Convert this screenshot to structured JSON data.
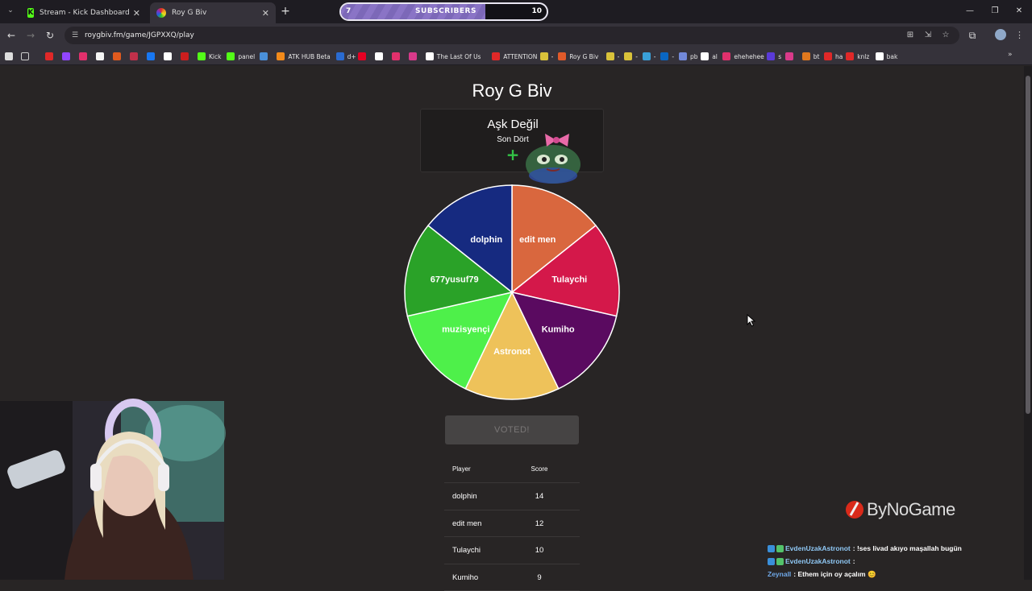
{
  "tabs": [
    {
      "title": "Stream - Kick Dashboard",
      "favicon": "kick-icon"
    },
    {
      "title": "Roy G Biv",
      "favicon": "roygbiv-icon"
    }
  ],
  "subscribers": {
    "current": "7",
    "label": "SUBSCRIBERS",
    "goal": "10",
    "progress": 0.7
  },
  "address_bar": {
    "url": "roygbiv.fm/game/JGPXXQ/play"
  },
  "bookmarks": [
    {
      "label": "",
      "color": "#e02828"
    },
    {
      "label": "",
      "color": "#9146ff"
    },
    {
      "label": "",
      "color": "#e1306c"
    },
    {
      "label": "",
      "color": "#f5f5f5"
    },
    {
      "label": "",
      "color": "#e05a1e"
    },
    {
      "label": "",
      "color": "#c0304a"
    },
    {
      "label": "",
      "color": "#1877f2"
    },
    {
      "label": "",
      "color": "#ffffff"
    },
    {
      "label": "",
      "color": "#cc1e1e"
    },
    {
      "label": "Kick",
      "color": "#53fc18"
    },
    {
      "label": "panel",
      "color": "#53fc18"
    },
    {
      "label": "",
      "color": "#4a90d9"
    },
    {
      "label": "ATK HUB Beta",
      "color": "#f28a1a"
    },
    {
      "label": "d+",
      "color": "#2a6bd1"
    },
    {
      "label": "",
      "color": "#e60023"
    },
    {
      "label": "",
      "color": "#ffffff"
    },
    {
      "label": "",
      "color": "#e1306c"
    },
    {
      "label": "",
      "color": "#d93a8a"
    },
    {
      "label": "The Last Of Us",
      "color": "#ffffff"
    },
    {
      "label": "ATTENTION",
      "color": "#e02828"
    },
    {
      "label": "-",
      "color": "#d9c23a"
    },
    {
      "label": "Roy G Biv",
      "color": "#e05a2a"
    },
    {
      "label": "-",
      "color": "#d9c23a"
    },
    {
      "label": "-",
      "color": "#d9c23a"
    },
    {
      "label": "-",
      "color": "#3aa0d9"
    },
    {
      "label": "-",
      "color": "#0a66c2"
    },
    {
      "label": "pb",
      "color": "#7289da"
    },
    {
      "label": "al",
      "color": "#ffffff"
    },
    {
      "label": "ehehehee",
      "color": "#e1306c"
    },
    {
      "label": "s",
      "color": "#5a3ad9"
    },
    {
      "label": "",
      "color": "#d93a8a"
    },
    {
      "label": "bt",
      "color": "#e0781e"
    },
    {
      "label": "ha",
      "color": "#e02828"
    },
    {
      "label": "knlz",
      "color": "#e02828"
    },
    {
      "label": "bak",
      "color": "#ffffff"
    }
  ],
  "game": {
    "title": "Roy G Biv",
    "song_title": "Aşk Değil",
    "song_artist": "Son Dört",
    "vote_button": "VOTED!"
  },
  "wheel": [
    {
      "label": "edit men",
      "color": "#d9673e"
    },
    {
      "label": "Tulaychi",
      "color": "#d4184a"
    },
    {
      "label": "Kumiho",
      "color": "#5a0a60"
    },
    {
      "label": "Astronot",
      "color": "#eec25a"
    },
    {
      "label": "muzisyençi",
      "color": "#4ef04a"
    },
    {
      "label": "677yusuf79",
      "color": "#2aa228"
    },
    {
      "label": "dolphin",
      "color": "#162a80"
    }
  ],
  "scoreboard": {
    "headers": {
      "player": "Player",
      "score": "Score"
    },
    "rows": [
      {
        "player": "dolphin",
        "score": "14"
      },
      {
        "player": "edit men",
        "score": "12"
      },
      {
        "player": "Tulaychi",
        "score": "10"
      },
      {
        "player": "Kumiho",
        "score": "9"
      }
    ]
  },
  "overlay": {
    "brand": "ByNoGame",
    "chat": [
      {
        "user": "EvdenUzakAstronot",
        "user_color": "#8fc8f5",
        "message": ": !ses livad akıyo maşallah bugün"
      },
      {
        "user": "EvdenUzakAstronot",
        "user_color": "#8fc8f5",
        "message": ":"
      },
      {
        "user": "Zeynall",
        "user_color": "#6fa8e8",
        "message": ": Ethem için oy açalım 😊"
      }
    ]
  }
}
